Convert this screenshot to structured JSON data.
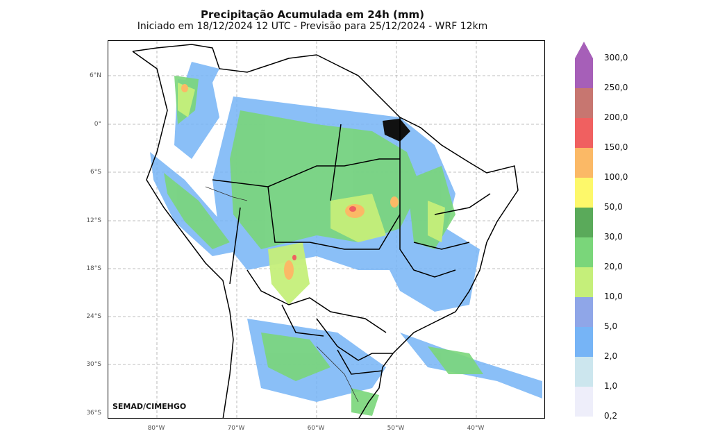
{
  "header": {
    "title": "Precipitação Acumulada em 24h (mm)",
    "subtitle": "Iniciado em 18/12/2024 12 UTC - Previsão para 25/12/2024 - WRF 12km"
  },
  "map": {
    "credit": "SEMAD/CIMEHGO",
    "lat_ticks": [
      "6°N",
      "0°",
      "6°S",
      "12°S",
      "18°S",
      "24°S",
      "30°S",
      "36°S"
    ],
    "lon_ticks": [
      "80°W",
      "70°W",
      "60°W",
      "50°W",
      "40°W"
    ],
    "region_icon": "south-america-map-icon"
  },
  "legend": {
    "labels": [
      "300,0",
      "250,0",
      "200,0",
      "150,0",
      "100,0",
      "50,0",
      "30,0",
      "20,0",
      "10,0",
      "5,0",
      "2,0",
      "1,0",
      "0,2"
    ],
    "colors": [
      "#a65fb8",
      "#c77670",
      "#f06060",
      "#fbb966",
      "#fdf86a",
      "#5aaa5a",
      "#7ad67a",
      "#c5ef7a",
      "#8fa6e8",
      "#76b4f6",
      "#cce6ee",
      "#eeeefa"
    ]
  }
}
